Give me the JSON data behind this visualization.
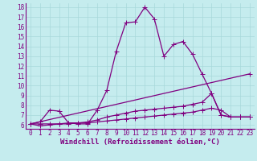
{
  "xlabel": "Windchill (Refroidissement éolien,°C)",
  "background_color": "#c5ecee",
  "line_color": "#800080",
  "grid_color": "#a8d8da",
  "xlim": [
    -0.5,
    23.5
  ],
  "ylim": [
    5.6,
    18.4
  ],
  "yticks": [
    6,
    7,
    8,
    9,
    10,
    11,
    12,
    13,
    14,
    15,
    16,
    17,
    18
  ],
  "xticks": [
    0,
    1,
    2,
    3,
    4,
    5,
    6,
    7,
    8,
    9,
    10,
    11,
    12,
    13,
    14,
    15,
    16,
    17,
    18,
    19,
    20,
    21,
    22,
    23
  ],
  "series": [
    {
      "x": [
        0,
        1,
        2,
        3,
        4,
        5,
        6,
        7,
        8,
        9,
        10,
        11,
        12,
        13,
        14,
        15,
        16,
        17,
        18,
        19,
        20,
        21,
        22,
        23
      ],
      "y": [
        6.1,
        6.3,
        7.5,
        7.4,
        6.2,
        6.1,
        6.1,
        7.5,
        9.5,
        13.5,
        16.4,
        16.5,
        18.0,
        16.8,
        13.0,
        14.2,
        14.5,
        13.2,
        11.2,
        9.2,
        7.0,
        6.8,
        6.8,
        6.8
      ]
    },
    {
      "x": [
        0,
        1,
        2,
        3,
        4,
        5,
        6,
        7,
        8,
        9,
        10,
        11,
        12,
        13,
        14,
        15,
        16,
        17,
        18,
        19,
        20,
        21,
        22,
        23
      ],
      "y": [
        6.1,
        5.9,
        6.0,
        6.1,
        6.1,
        6.2,
        6.3,
        6.5,
        6.8,
        7.0,
        7.2,
        7.4,
        7.5,
        7.6,
        7.7,
        7.8,
        7.9,
        8.1,
        8.3,
        9.2,
        7.0,
        6.8,
        6.8,
        6.8
      ]
    },
    {
      "x": [
        0,
        1,
        2,
        3,
        4,
        5,
        6,
        7,
        8,
        9,
        10,
        11,
        12,
        13,
        14,
        15,
        16,
        17,
        18,
        19,
        20,
        21,
        22,
        23
      ],
      "y": [
        6.1,
        6.1,
        6.1,
        6.1,
        6.2,
        6.2,
        6.2,
        6.3,
        6.4,
        6.5,
        6.6,
        6.7,
        6.8,
        6.9,
        7.0,
        7.1,
        7.2,
        7.3,
        7.5,
        7.7,
        7.5,
        6.8,
        6.8,
        6.8
      ]
    },
    {
      "x": [
        0,
        23
      ],
      "y": [
        6.1,
        11.2
      ]
    }
  ],
  "marker": "+",
  "markersize": 4,
  "linewidth": 0.9,
  "tick_fontsize": 5.5,
  "xlabel_fontsize": 6.5
}
